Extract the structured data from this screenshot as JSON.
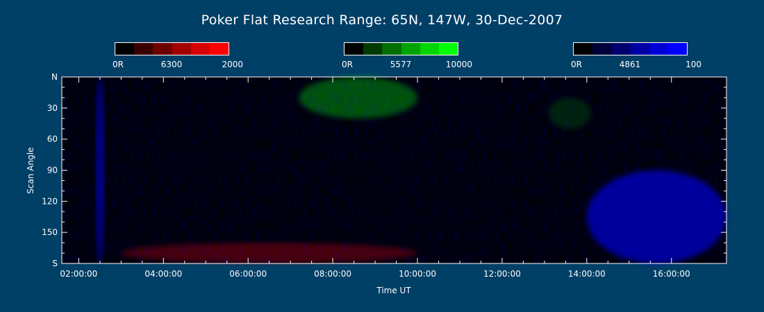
{
  "title": "Poker Flat Research Range: 65N, 147W, 30-Dec-2007",
  "colorbars": [
    {
      "wavelength": "6300",
      "min_label": "0R",
      "max_label": "2000",
      "colors": [
        "#000000",
        "#3a0000",
        "#6e0000",
        "#a30000",
        "#d60000",
        "#ff0000"
      ]
    },
    {
      "wavelength": "5577",
      "min_label": "0R",
      "max_label": "10000",
      "colors": [
        "#000000",
        "#003a00",
        "#006e00",
        "#00a300",
        "#00d600",
        "#00ff00"
      ]
    },
    {
      "wavelength": "4861",
      "min_label": "0R",
      "max_label": "100",
      "colors": [
        "#000000",
        "#00003a",
        "#00006e",
        "#0000a3",
        "#0000d6",
        "#0000ff"
      ]
    }
  ],
  "chart_data": {
    "type": "heatmap",
    "title": "Poker Flat Research Range: 65N, 147W, 30-Dec-2007",
    "xlabel": "Time UT",
    "ylabel": "Scan Angle",
    "x_tick_labels": [
      "02:00:00",
      "04:00:00",
      "06:00:00",
      "08:00:00",
      "10:00:00",
      "12:00:00",
      "14:00:00",
      "16:00:00"
    ],
    "x_tick_hours": [
      2,
      4,
      6,
      8,
      10,
      12,
      14,
      16
    ],
    "xlim_hours": [
      1.6,
      17.3
    ],
    "y_tick_labels": [
      "N",
      "30",
      "60",
      "90",
      "120",
      "150",
      "S"
    ],
    "y_tick_values": [
      0,
      30,
      60,
      90,
      120,
      150,
      180
    ],
    "ylim": [
      0,
      180
    ],
    "channels": [
      {
        "wavelength": "6300",
        "color": "#ff0000",
        "range_R": [
          0,
          2000
        ]
      },
      {
        "wavelength": "5577",
        "color": "#00ff00",
        "range_R": [
          0,
          10000
        ]
      },
      {
        "wavelength": "4861",
        "color": "#0000ff",
        "range_R": [
          0,
          100
        ]
      }
    ],
    "features": [
      {
        "channel": "5577",
        "time_hours": [
          7.2,
          10.0
        ],
        "scan_angle": [
          0,
          40
        ],
        "level": 0.35
      },
      {
        "channel": "5577",
        "time_hours": [
          13.1,
          14.1
        ],
        "scan_angle": [
          20,
          50
        ],
        "level": 0.15
      },
      {
        "channel": "6300",
        "time_hours": [
          3.0,
          10.0
        ],
        "scan_angle": [
          160,
          180
        ],
        "level": 0.3
      },
      {
        "channel": "4861",
        "time_hours": [
          2.4,
          2.6
        ],
        "scan_angle": [
          0,
          180
        ],
        "level": 0.55
      },
      {
        "channel": "4861",
        "time_hours": [
          14.0,
          17.3
        ],
        "scan_angle": [
          90,
          180
        ],
        "level": 0.6
      }
    ]
  }
}
